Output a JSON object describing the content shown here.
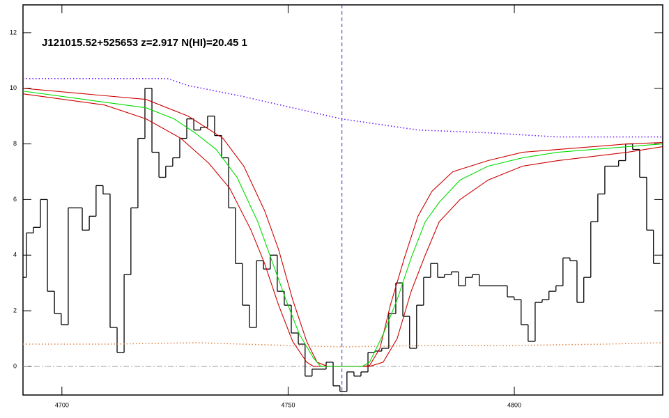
{
  "chart_data": {
    "type": "spectrum",
    "title": "J121015.52+525653 z=2.917 N(HI)=20.45 1",
    "xlim": [
      4691.4,
      4832.8
    ],
    "ylim": [
      -1.03,
      13.0
    ],
    "xticks": [
      4700,
      4750,
      4800
    ],
    "yticks": [
      0,
      2,
      4,
      6,
      8,
      10,
      12
    ],
    "series": [
      {
        "style": "step",
        "color": "#000000",
        "x": [
          4691.4,
          4692.9,
          4694.5,
          4696.0,
          4697.6,
          4699.1,
          4700.6,
          4702.2,
          4703.7,
          4705.3,
          4706.8,
          4708.3,
          4709.9,
          4711.4,
          4713.0,
          4714.5,
          4716.0,
          4717.6,
          4719.1,
          4720.7,
          4722.2,
          4723.7,
          4725.3,
          4726.8,
          4728.4,
          4729.9,
          4731.4,
          4733.0,
          4734.5,
          4736.1,
          4737.6,
          4739.1,
          4740.7,
          4742.2,
          4743.8,
          4745.3,
          4746.8,
          4748.4,
          4749.9,
          4751.5,
          4753.0,
          4754.5,
          4756.1,
          4757.6,
          4759.2,
          4760.7,
          4762.2,
          4763.8,
          4765.3,
          4766.9,
          4768.4,
          4769.9,
          4771.5,
          4773.0,
          4774.6,
          4776.1,
          4777.6,
          4779.2,
          4780.7,
          4782.3,
          4783.8,
          4785.3,
          4786.9,
          4788.4,
          4790.0,
          4791.5,
          4793.0,
          4794.6,
          4796.1,
          4797.7,
          4799.2,
          4800.7,
          4802.3,
          4803.8,
          4805.4,
          4806.9,
          4808.4,
          4810.0,
          4811.5,
          4813.1,
          4814.6,
          4816.1,
          4817.7,
          4819.2,
          4820.8,
          4822.3,
          4823.8,
          4825.4,
          4826.9,
          4828.5,
          4830.0,
          4831.5
        ],
        "values": [
          3.2,
          4.8,
          5.0,
          6.0,
          2.7,
          1.9,
          1.5,
          5.7,
          5.7,
          4.9,
          5.4,
          6.5,
          6.2,
          1.4,
          0.5,
          3.3,
          5.7,
          8.2,
          10.0,
          7.7,
          6.8,
          7.2,
          7.5,
          8.2,
          8.9,
          8.5,
          8.6,
          9.0,
          8.3,
          7.5,
          5.7,
          3.7,
          2.2,
          1.4,
          3.8,
          3.5,
          4.0,
          2.7,
          2.2,
          1.2,
          0.8,
          -0.35,
          -0.1,
          -0.1,
          0.15,
          -0.7,
          -0.9,
          -0.2,
          -0.35,
          -0.2,
          0.5,
          0.55,
          0.65,
          1.9,
          3.0,
          1.8,
          0.65,
          2.2,
          3.2,
          3.7,
          3.2,
          3.3,
          3.4,
          2.9,
          3.2,
          3.3,
          2.9,
          2.9,
          2.9,
          2.9,
          2.5,
          2.4,
          1.5,
          0.9,
          2.3,
          2.4,
          2.7,
          2.9,
          3.9,
          3.8,
          2.3,
          3.2,
          5.2,
          6.2,
          7.2,
          7.2,
          7.4,
          8.0,
          7.8,
          6.8,
          4.9,
          3.7
        ]
      },
      {
        "style": "solid",
        "color": "#cc0000",
        "x": [
          4691.4,
          4718.6,
          4727.9,
          4735.6,
          4740.2,
          4744.8,
          4747.9,
          4751.0,
          4754.1,
          4756.4,
          4758.7,
          4766.4,
          4768.0,
          4770.3,
          4772.6,
          4775.7,
          4778.7,
          4781.8,
          4786.4,
          4794.2,
          4801.8,
          4809.6,
          4825.0,
          4832.7
        ],
        "values": [
          10.0,
          9.6,
          9.0,
          8.2,
          7.2,
          5.6,
          4.2,
          2.4,
          0.9,
          0.15,
          0,
          0,
          0.03,
          0.65,
          2.2,
          3.9,
          5.4,
          6.3,
          7.0,
          7.4,
          7.7,
          7.8,
          8.0,
          8.05
        ]
      },
      {
        "style": "solid",
        "color": "#cc0000",
        "x": [
          4691.4,
          4709.4,
          4718.6,
          4726.3,
          4732.5,
          4737.1,
          4741.8,
          4744.8,
          4747.9,
          4751.0,
          4754.1,
          4755.6,
          4768.0,
          4771.0,
          4774.1,
          4777.2,
          4780.3,
          4783.4,
          4788.0,
          4794.2,
          4801.8,
          4809.6,
          4825.0,
          4832.7
        ],
        "values": [
          9.8,
          9.4,
          8.9,
          8.2,
          7.3,
          6.4,
          4.9,
          3.7,
          2.2,
          0.9,
          0.15,
          0,
          0,
          0.15,
          1.0,
          2.7,
          4.0,
          5.2,
          6.0,
          6.7,
          7.2,
          7.4,
          7.7,
          7.9
        ]
      },
      {
        "style": "solid",
        "color": "#00dd00",
        "x": [
          4691.4,
          4709.4,
          4718.6,
          4724.8,
          4729.4,
          4734.1,
          4738.7,
          4743.3,
          4746.4,
          4749.5,
          4752.5,
          4755.6,
          4757.2,
          4758.7,
          4766.4,
          4768.0,
          4771.0,
          4774.1,
          4777.2,
          4780.3,
          4783.4,
          4788.0,
          4794.2,
          4801.8,
          4809.6,
          4817.3,
          4825.0,
          4832.7
        ],
        "values": [
          9.9,
          9.5,
          9.3,
          8.9,
          8.4,
          7.8,
          6.8,
          5.2,
          3.8,
          2.4,
          1.15,
          0.3,
          0,
          0,
          0,
          0.15,
          1.15,
          2.4,
          3.9,
          5.2,
          5.9,
          6.7,
          7.2,
          7.5,
          7.7,
          7.8,
          7.9,
          8.0
        ]
      },
      {
        "style": "dotted",
        "color": "#6a1cff",
        "x": [
          4691.4,
          4723.3,
          4727.9,
          4740.2,
          4761.8,
          4778.7,
          4794.2,
          4809.6,
          4832.7
        ],
        "values": [
          10.35,
          10.35,
          10.1,
          9.7,
          8.9,
          8.5,
          8.4,
          8.25,
          8.25
        ]
      },
      {
        "style": "dotted",
        "color": "#e08a50",
        "x": [
          4691.4,
          4710,
          4730,
          4750,
          4761.8,
          4780,
          4800,
          4820,
          4832.7
        ],
        "values": [
          0.8,
          0.8,
          0.85,
          0.75,
          0.7,
          0.75,
          0.75,
          0.8,
          0.85
        ]
      }
    ],
    "vlines": [
      {
        "x": 4761.9,
        "color": "#2a2ad0",
        "style": "dashed"
      }
    ],
    "hlines": [
      {
        "y": 0,
        "color": "#999999",
        "style": "dashdot"
      }
    ]
  }
}
